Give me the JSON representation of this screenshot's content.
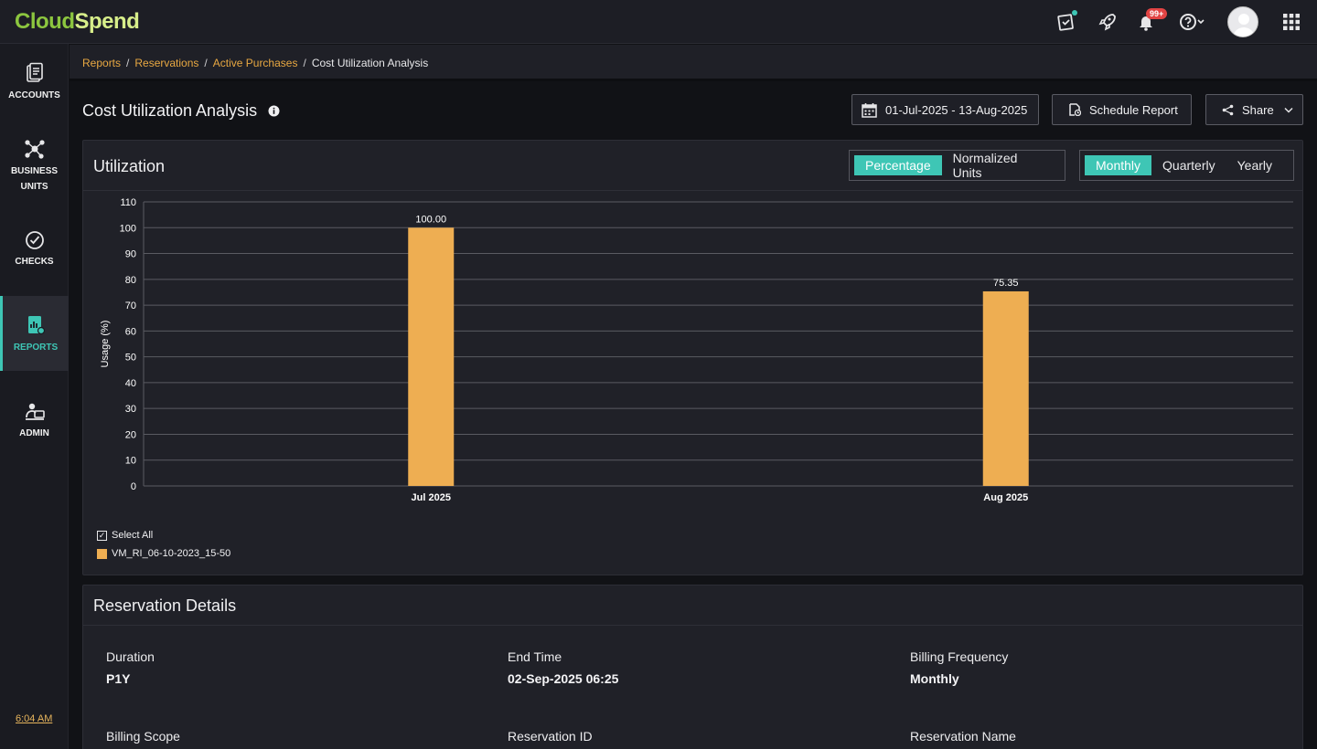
{
  "app": {
    "logo_part1": "Cloud",
    "logo_part2": "Spend",
    "notifications_badge": "99+"
  },
  "sidebar": {
    "items": [
      {
        "label": "ACCOUNTS"
      },
      {
        "label_line1": "BUSINESS",
        "label_line2": "UNITS"
      },
      {
        "label": "CHECKS"
      },
      {
        "label": "REPORTS"
      },
      {
        "label": "ADMIN"
      }
    ],
    "time": "6:04 AM"
  },
  "breadcrumb": {
    "items": [
      "Reports",
      "Reservations",
      "Active Purchases"
    ],
    "current": "Cost Utilization Analysis"
  },
  "header": {
    "title": "Cost Utilization Analysis",
    "date_range": "01-Jul-2025 - 13-Aug-2025",
    "schedule_label": "Schedule Report",
    "share_label": "Share"
  },
  "utilization": {
    "title": "Utilization",
    "metric_options": [
      "Percentage",
      "Normalized Units"
    ],
    "period_options": [
      "Monthly",
      "Quarterly",
      "Yearly"
    ],
    "select_all_label": "Select All"
  },
  "chart_data": {
    "type": "bar",
    "categories": [
      "Jul 2025",
      "Aug 2025"
    ],
    "series": [
      {
        "name": "VM_RI_06-10-2023_15-50",
        "values": [
          100.0,
          75.35
        ],
        "color": "#eeae52"
      }
    ],
    "data_labels": [
      "100.00",
      "75.35"
    ],
    "ylabel": "Usage (%)",
    "ylim": [
      0,
      110
    ],
    "yticks": [
      0,
      10,
      20,
      30,
      40,
      50,
      60,
      70,
      80,
      90,
      100,
      110
    ],
    "grid": true,
    "legend": "bottom-left"
  },
  "reservation": {
    "title": "Reservation Details",
    "fields": [
      {
        "label": "Duration",
        "value": "P1Y"
      },
      {
        "label": "End Time",
        "value": "02-Sep-2025 06:25"
      },
      {
        "label": "Billing Frequency",
        "value": "Monthly"
      },
      {
        "label": "Billing Scope",
        "value": ""
      },
      {
        "label": "Reservation ID",
        "value": ""
      },
      {
        "label": "Reservation Name",
        "value": ""
      }
    ]
  },
  "colors": {
    "accent": "#3ec6b5",
    "link": "#e8a842",
    "bar": "#eeae52"
  }
}
